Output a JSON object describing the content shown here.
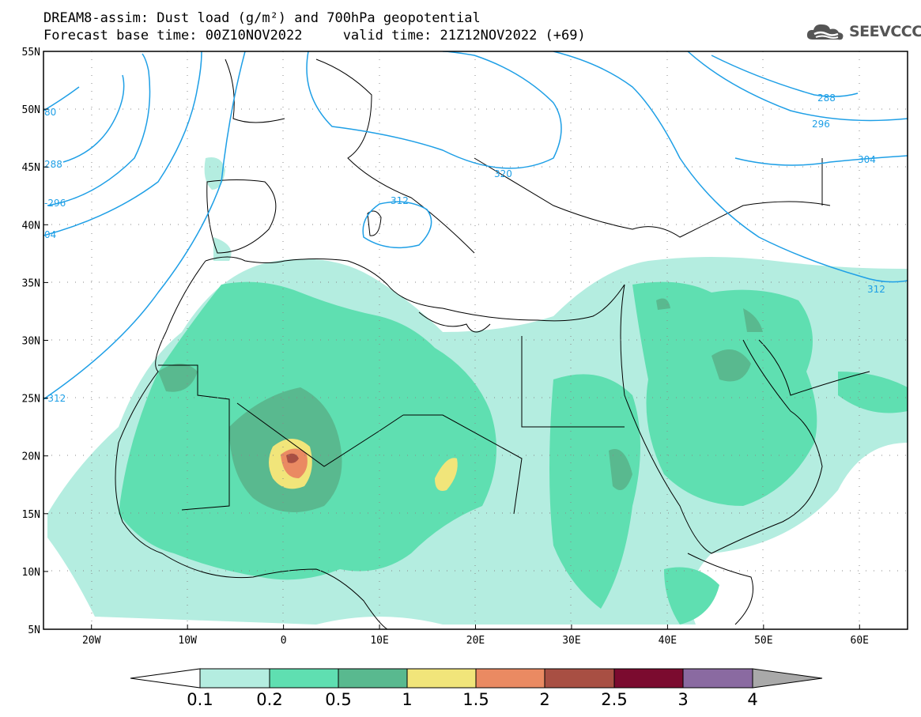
{
  "header": {
    "line1": "DREAM8-assim: Dust load (g/m²) and 700hPa geopotential",
    "line2": "Forecast base time: 00Z10NOV2022     valid time: 21Z12NOV2022 (+69)"
  },
  "logo": {
    "text": "SEEVCCC",
    "icon": "cloud-icon"
  },
  "map": {
    "lon_range": [
      -25,
      65
    ],
    "lat_range": [
      5,
      55
    ],
    "lat_ticks": [
      {
        "value": 55,
        "label": "55N"
      },
      {
        "value": 50,
        "label": "50N"
      },
      {
        "value": 45,
        "label": "45N"
      },
      {
        "value": 40,
        "label": "40N"
      },
      {
        "value": 35,
        "label": "35N"
      },
      {
        "value": 30,
        "label": "30N"
      },
      {
        "value": 25,
        "label": "25N"
      },
      {
        "value": 20,
        "label": "20N"
      },
      {
        "value": 15,
        "label": "15N"
      },
      {
        "value": 10,
        "label": "10N"
      },
      {
        "value": 5,
        "label": "5N"
      }
    ],
    "lon_ticks": [
      {
        "value": -20,
        "label": "20W"
      },
      {
        "value": -10,
        "label": "10W"
      },
      {
        "value": 0,
        "label": "0"
      },
      {
        "value": 10,
        "label": "10E"
      },
      {
        "value": 20,
        "label": "20E"
      },
      {
        "value": 30,
        "label": "30E"
      },
      {
        "value": 40,
        "label": "40E"
      },
      {
        "value": 50,
        "label": "50E"
      },
      {
        "value": 60,
        "label": "60E"
      }
    ],
    "contour_labels": [
      "80",
      "288",
      "-296",
      "04",
      "312",
      "-312",
      "320",
      "288",
      "296",
      "304",
      "312"
    ],
    "colors": {
      "contour": "#1e9fe6",
      "coast": "#000000",
      "grid": "#666666"
    }
  },
  "colorbar": {
    "levels": [
      "0.1",
      "0.2",
      "0.5",
      "1",
      "1.5",
      "2",
      "2.5",
      "3",
      "4"
    ],
    "colors": [
      "#ffffff",
      "#b4ede0",
      "#5fdfb1",
      "#59b98f",
      "#f1e57a",
      "#ea8a62",
      "#a84f43",
      "#7b0b2f",
      "#8a6aa1",
      "#a9a9a9"
    ]
  }
}
